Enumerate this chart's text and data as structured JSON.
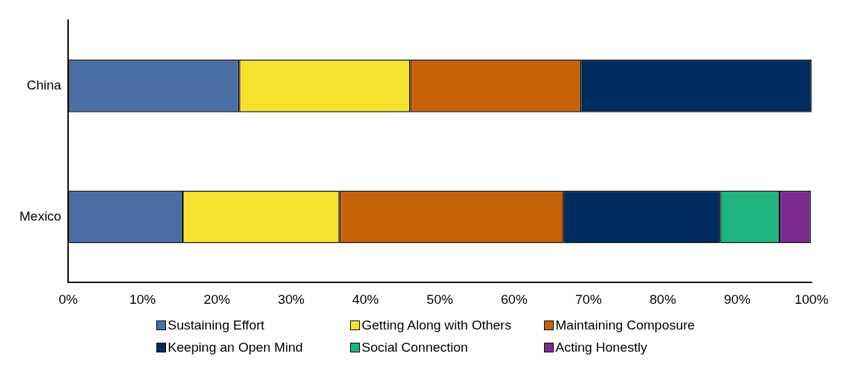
{
  "chart_data": {
    "type": "bar",
    "orientation": "horizontal",
    "stacked": true,
    "categories": [
      "China",
      "Mexico"
    ],
    "series": [
      {
        "name": "Sustaining Effort",
        "color": "#4a6fa5",
        "values": [
          23,
          15.4
        ]
      },
      {
        "name": "Getting Along with Others",
        "color": "#f5e22e",
        "values": [
          23,
          21.1
        ]
      },
      {
        "name": "Maintaining Composure",
        "color": "#c8620a",
        "values": [
          23,
          30.1
        ]
      },
      {
        "name": "Keeping an Open Mind",
        "color": "#002c5f",
        "values": [
          31,
          21.1
        ]
      },
      {
        "name": "Social Connection",
        "color": "#1fb47f",
        "values": [
          null,
          8
        ]
      },
      {
        "name": "Acting Honestly",
        "color": "#7b2d8f",
        "values": [
          null,
          4.2
        ]
      }
    ],
    "xlim": [
      0,
      100
    ],
    "xticks": [
      {
        "value": 0,
        "label": "0%"
      },
      {
        "value": 10,
        "label": "10%"
      },
      {
        "value": 20,
        "label": "20%"
      },
      {
        "value": 30,
        "label": "30%"
      },
      {
        "value": 40,
        "label": "40%"
      },
      {
        "value": 50,
        "label": "50%"
      },
      {
        "value": 60,
        "label": "60%"
      },
      {
        "value": 70,
        "label": "70%"
      },
      {
        "value": 80,
        "label": "80%"
      },
      {
        "value": 90,
        "label": "90%"
      },
      {
        "value": 100,
        "label": "100%"
      }
    ],
    "grid": false,
    "legend": "bottom"
  }
}
